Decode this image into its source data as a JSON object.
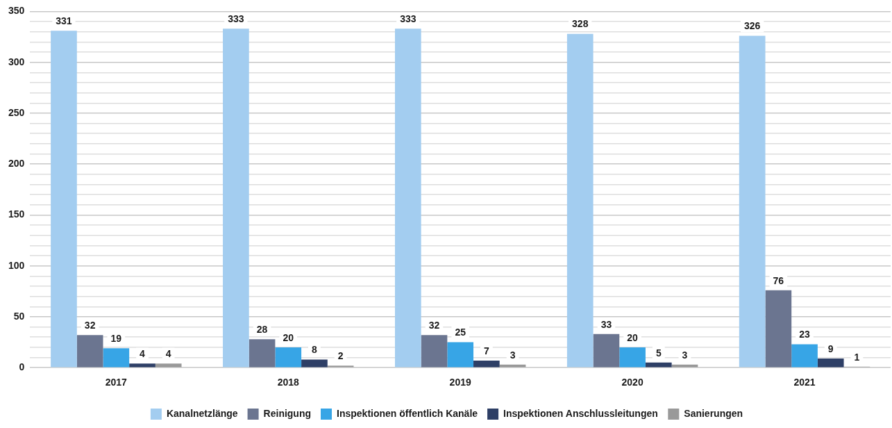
{
  "chart_data": {
    "type": "bar",
    "categories": [
      "2017",
      "2018",
      "2019",
      "2020",
      "2021"
    ],
    "series": [
      {
        "name": "Kanalnetzlänge",
        "color": "#a3cdf0",
        "values": [
          331,
          333,
          333,
          328,
          326
        ]
      },
      {
        "name": "Reinigung",
        "color": "#6b7590",
        "values": [
          32,
          28,
          32,
          33,
          76
        ]
      },
      {
        "name": "Inspektionen öffentlich Kanäle",
        "color": "#37a5e6",
        "values": [
          19,
          20,
          25,
          20,
          23
        ]
      },
      {
        "name": "Inspektionen Anschlussleitungen",
        "color": "#2e3f66",
        "values": [
          4,
          8,
          7,
          5,
          9
        ]
      },
      {
        "name": "Sanierungen",
        "color": "#999999",
        "values": [
          4,
          2,
          3,
          3,
          1
        ]
      }
    ],
    "ylim": [
      0,
      350
    ],
    "yticks": [
      0,
      {
        "value": 10,
        "label": null
      },
      {
        "value": 20,
        "label": null
      },
      {
        "value": 30,
        "label": null
      },
      {
        "value": 40,
        "label": null
      },
      50,
      {
        "value": 60,
        "label": null
      },
      {
        "value": 70,
        "label": null
      },
      {
        "value": 80,
        "label": null
      },
      {
        "value": 90,
        "label": null
      },
      100,
      {
        "value": 110,
        "label": null
      },
      {
        "value": 120,
        "label": null
      },
      {
        "value": 130,
        "label": null
      },
      {
        "value": 140,
        "label": null
      },
      150,
      {
        "value": 160,
        "label": null
      },
      {
        "value": 170,
        "label": null
      },
      {
        "value": 180,
        "label": null
      },
      {
        "value": 190,
        "label": null
      },
      200,
      {
        "value": 210,
        "label": null
      },
      {
        "value": 220,
        "label": null
      },
      {
        "value": 230,
        "label": null
      },
      {
        "value": 240,
        "label": null
      },
      250,
      {
        "value": 260,
        "label": null
      },
      {
        "value": 270,
        "label": null
      },
      {
        "value": 280,
        "label": null
      },
      {
        "value": 290,
        "label": null
      },
      300,
      {
        "value": 310,
        "label": null
      },
      {
        "value": 320,
        "label": null
      },
      {
        "value": 330,
        "label": null
      },
      {
        "value": 340,
        "label": null
      },
      350
    ],
    "grid": "y",
    "legend": "bottom",
    "data_labels": true
  }
}
